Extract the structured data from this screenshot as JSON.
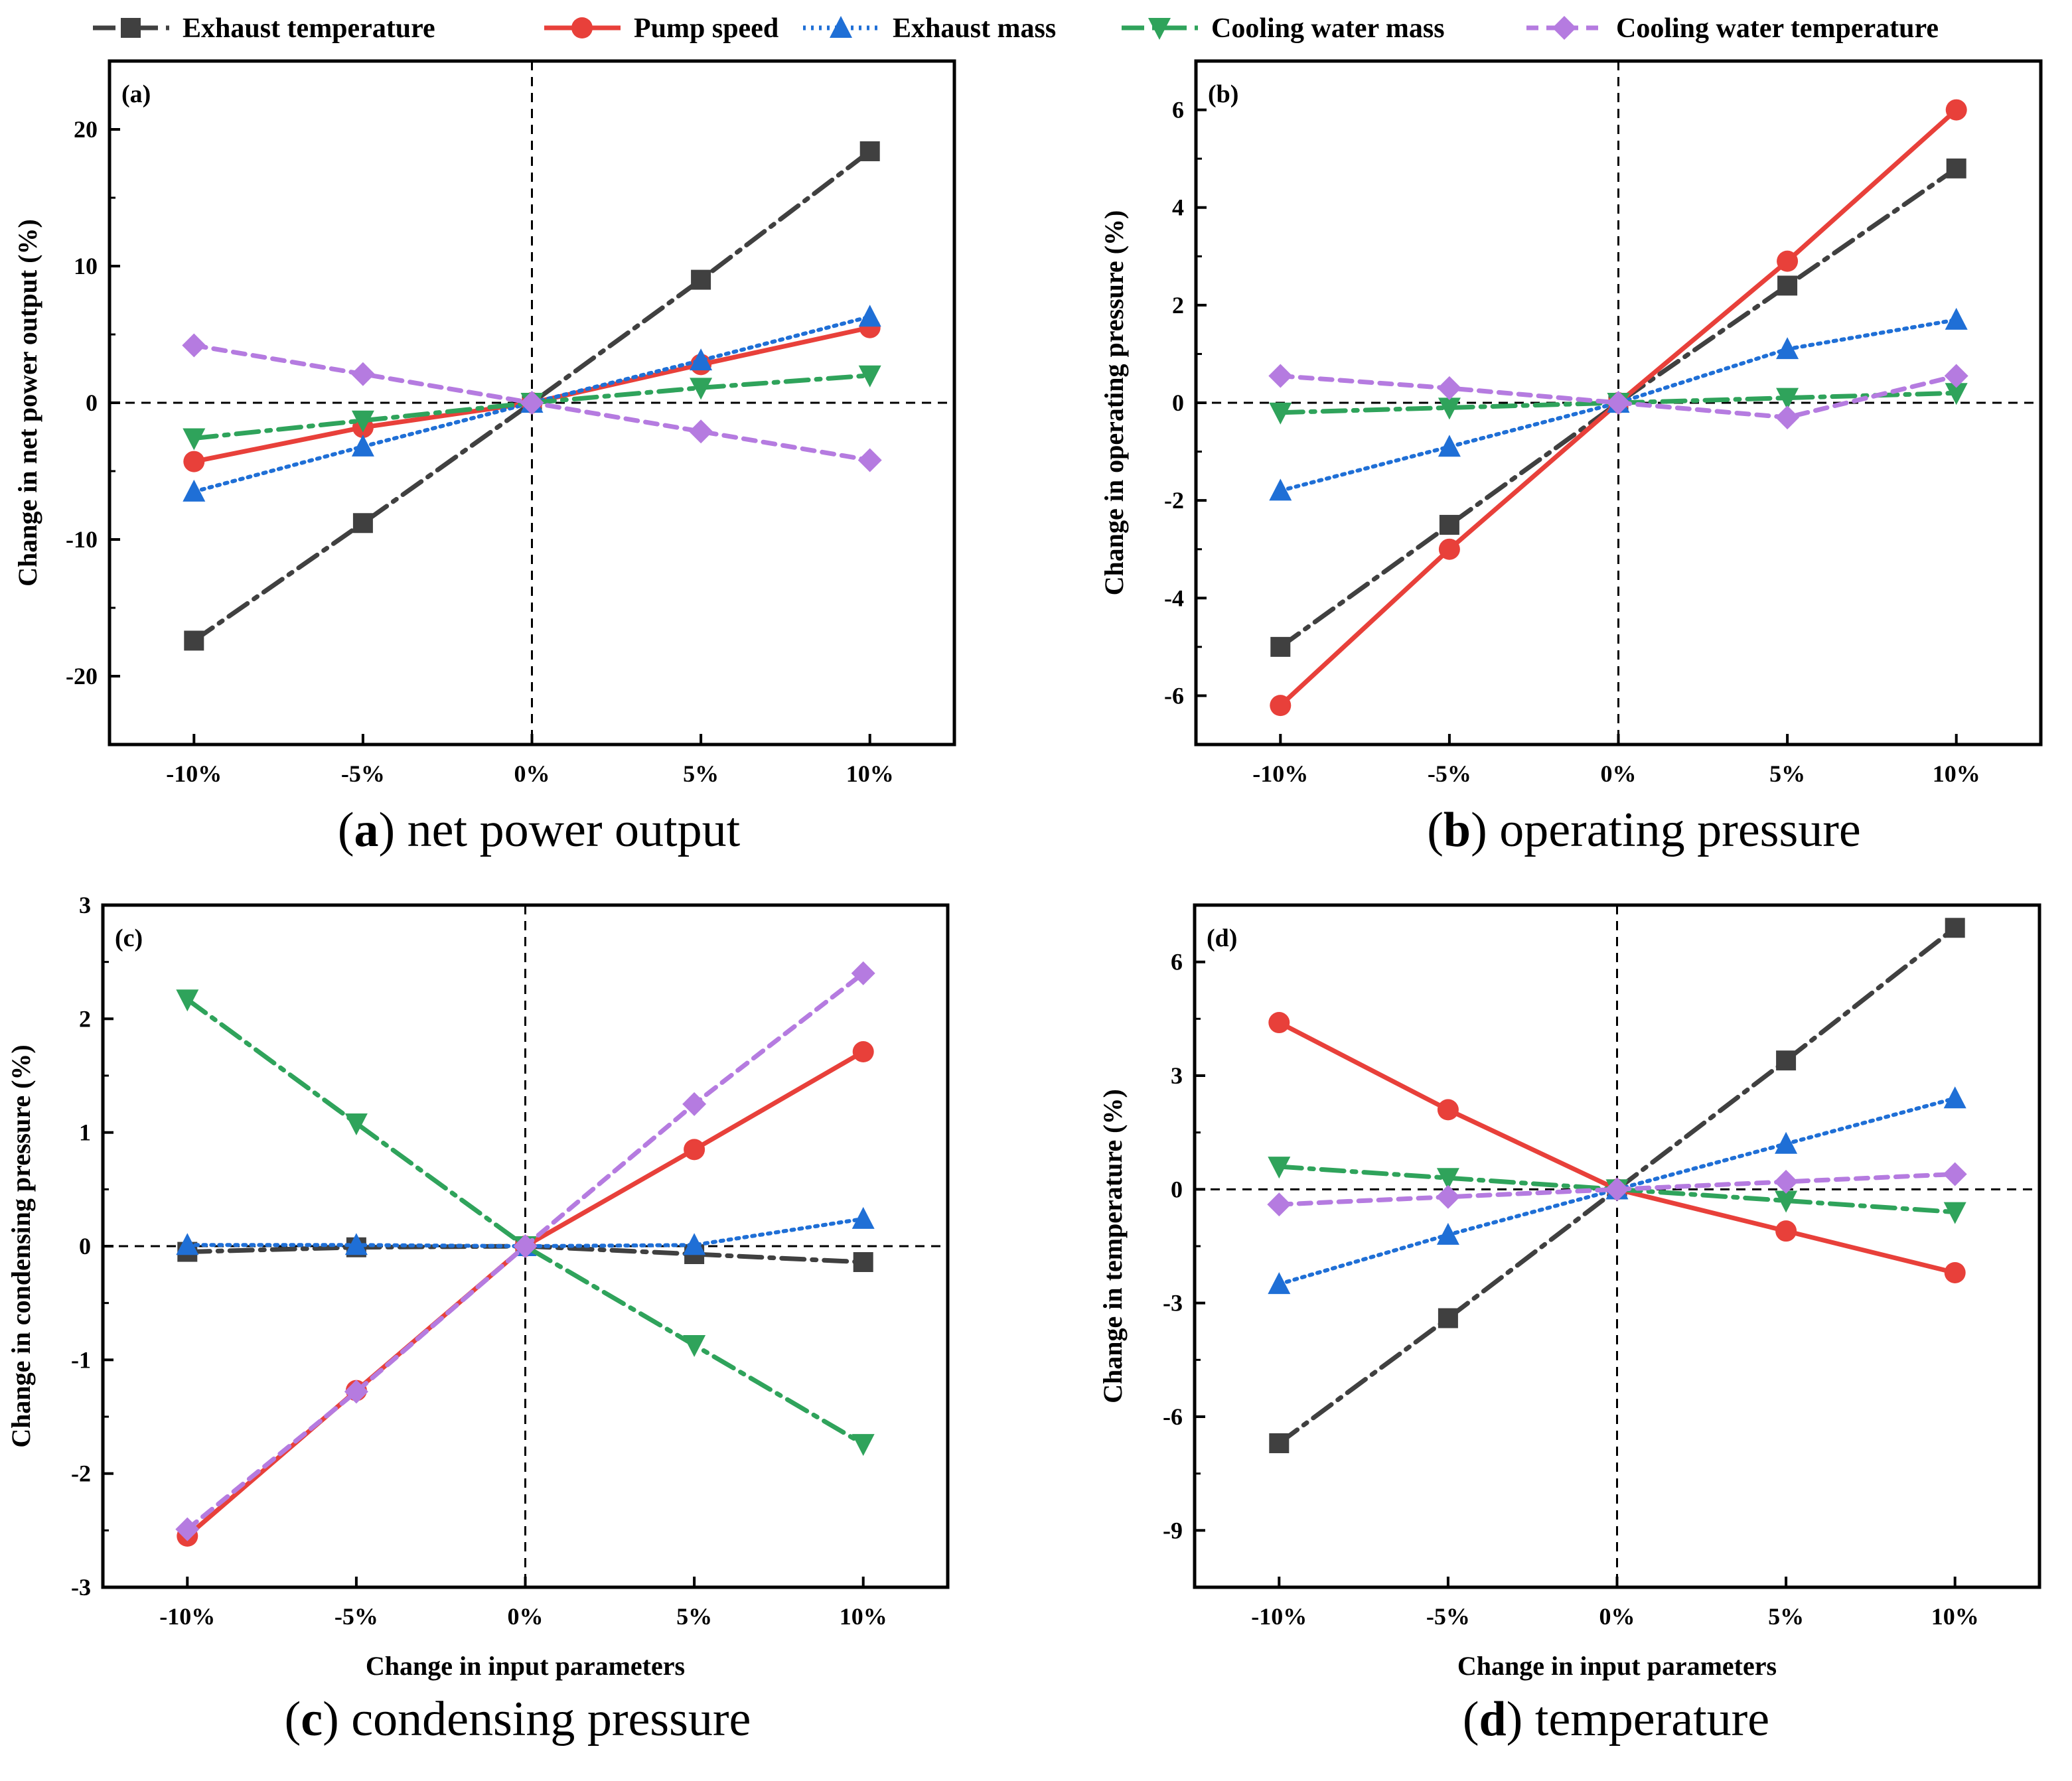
{
  "legend": [
    {
      "name": "Exhaust temperature",
      "color": "#404040",
      "marker": "square",
      "dash": "dashdot"
    },
    {
      "name": "Pump speed",
      "color": "#e8403a",
      "marker": "circle",
      "dash": "solid"
    },
    {
      "name": "Exhaust mass",
      "color": "#1f6fd6",
      "marker": "triangle-up",
      "dash": "dot"
    },
    {
      "name": "Cooling water mass",
      "color": "#2fa35b",
      "marker": "triangle-down",
      "dash": "dashdot"
    },
    {
      "name": "Cooling water temperature",
      "color": "#b57be0",
      "marker": "diamond",
      "dash": "dash"
    }
  ],
  "chart_data": [
    {
      "type": "line",
      "panel_tag": "(a)",
      "caption": {
        "letter": "a",
        "text": " net power output"
      },
      "categories": [
        "-10%",
        "-5%",
        "0%",
        "5%",
        "10%"
      ],
      "ylabel": "Change in net power output (%)",
      "xlabel": "",
      "ylim": [
        -25,
        25
      ],
      "yticks": [
        -20,
        -10,
        0,
        10,
        20
      ],
      "series": [
        {
          "name": "Exhaust temperature",
          "values": [
            -17.4,
            -8.8,
            0,
            9.0,
            18.4
          ]
        },
        {
          "name": "Pump speed",
          "values": [
            -4.3,
            -1.8,
            0,
            2.8,
            5.5
          ]
        },
        {
          "name": "Exhaust mass",
          "values": [
            -6.5,
            -3.2,
            0,
            3.1,
            6.3
          ]
        },
        {
          "name": "Cooling water mass",
          "values": [
            -2.6,
            -1.3,
            0,
            1.1,
            2.0
          ]
        },
        {
          "name": "Cooling water temperature",
          "values": [
            4.2,
            2.1,
            0,
            -2.1,
            -4.2
          ]
        }
      ]
    },
    {
      "type": "line",
      "panel_tag": "(b)",
      "caption": {
        "letter": "b",
        "text": " operating pressure"
      },
      "categories": [
        "-10%",
        "-5%",
        "0%",
        "5%",
        "10%"
      ],
      "ylabel": "Change in operating pressure (%)",
      "xlabel": "",
      "ylim": [
        -7,
        7
      ],
      "yticks": [
        -6,
        -4,
        -2,
        0,
        2,
        4,
        6
      ],
      "series": [
        {
          "name": "Exhaust temperature",
          "values": [
            -5.0,
            -2.5,
            0,
            2.4,
            4.8
          ]
        },
        {
          "name": "Pump speed",
          "values": [
            -6.2,
            -3.0,
            0,
            2.9,
            6.0
          ]
        },
        {
          "name": "Exhaust mass",
          "values": [
            -1.8,
            -0.9,
            0,
            1.1,
            1.7
          ]
        },
        {
          "name": "Cooling water mass",
          "values": [
            -0.2,
            -0.1,
            0,
            0.1,
            0.2
          ]
        },
        {
          "name": "Cooling water temperature",
          "values": [
            0.55,
            0.3,
            0,
            -0.3,
            0.55
          ]
        }
      ]
    },
    {
      "type": "line",
      "panel_tag": "(c)",
      "caption": {
        "letter": "c",
        "text": " condensing pressure"
      },
      "categories": [
        "-10%",
        "-5%",
        "0%",
        "5%",
        "10%"
      ],
      "ylabel": "Change in condensing pressure (%)",
      "xlabel": "Change in input parameters",
      "ylim": [
        -3,
        3
      ],
      "yticks": [
        -3,
        -2,
        -1,
        0,
        1,
        2,
        3
      ],
      "series": [
        {
          "name": "Exhaust temperature",
          "values": [
            -0.05,
            -0.01,
            0,
            -0.07,
            -0.14
          ]
        },
        {
          "name": "Pump speed",
          "values": [
            -2.55,
            -1.27,
            0,
            0.85,
            1.71
          ]
        },
        {
          "name": "Exhaust mass",
          "values": [
            0.01,
            0.01,
            0,
            0.01,
            0.24
          ]
        },
        {
          "name": "Cooling water mass",
          "values": [
            2.17,
            1.08,
            0,
            -0.87,
            -1.74
          ]
        },
        {
          "name": "Cooling water temperature",
          "values": [
            -2.49,
            -1.28,
            0,
            1.25,
            2.4
          ]
        }
      ]
    },
    {
      "type": "line",
      "panel_tag": "(d)",
      "caption": {
        "letter": "d",
        "text": " temperature"
      },
      "categories": [
        "-10%",
        "-5%",
        "0%",
        "5%",
        "10%"
      ],
      "ylabel": "Change in temperature (%)",
      "xlabel": "Change in input parameters",
      "ylim": [
        -10.5,
        7.5
      ],
      "yticks": [
        -9,
        -6,
        -3,
        0,
        3,
        6
      ],
      "series": [
        {
          "name": "Exhaust temperature",
          "values": [
            -6.7,
            -3.4,
            0,
            3.4,
            6.9
          ]
        },
        {
          "name": "Pump speed",
          "values": [
            4.4,
            2.1,
            0,
            -1.1,
            -2.2
          ]
        },
        {
          "name": "Exhaust mass",
          "values": [
            -2.5,
            -1.2,
            0,
            1.2,
            2.4
          ]
        },
        {
          "name": "Cooling water mass",
          "values": [
            0.6,
            0.3,
            0,
            -0.3,
            -0.6
          ]
        },
        {
          "name": "Cooling water temperature",
          "values": [
            -0.4,
            -0.2,
            0,
            0.2,
            0.4
          ]
        }
      ]
    }
  ]
}
